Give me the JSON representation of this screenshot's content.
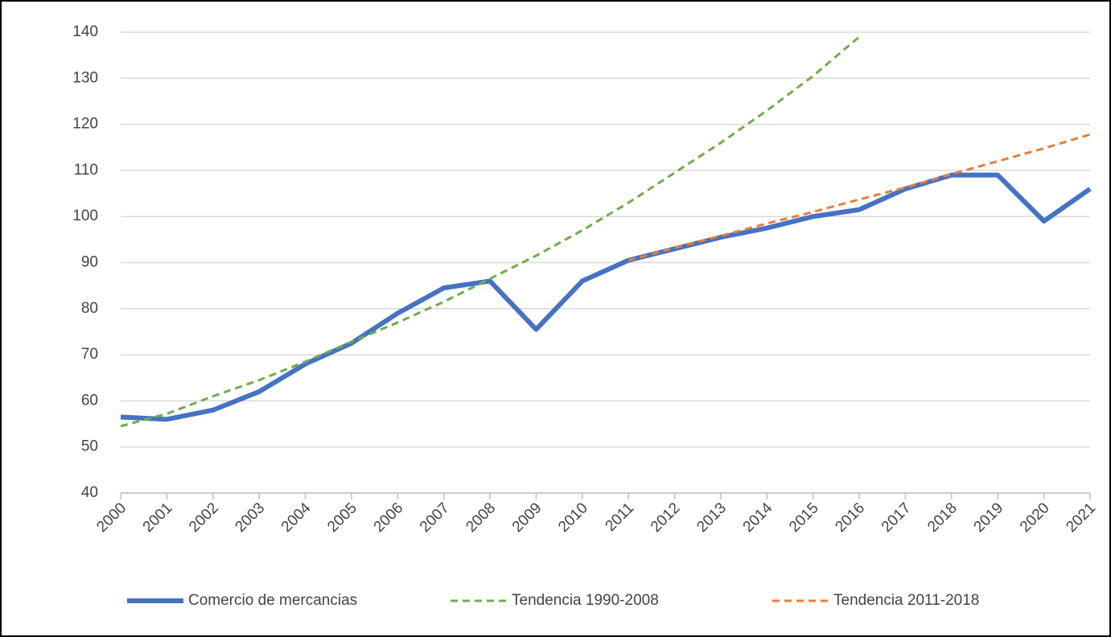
{
  "chart_data": {
    "type": "line",
    "categories": [
      "2000",
      "2001",
      "2002",
      "2003",
      "2004",
      "2005",
      "2006",
      "2007",
      "2008",
      "2009",
      "2010",
      "2011",
      "2012",
      "2013",
      "2014",
      "2015",
      "2016",
      "2017",
      "2018",
      "2019",
      "2020",
      "2021"
    ],
    "series": [
      {
        "name": "Comercio de mercancias",
        "color": "#4472c4",
        "dash": "solid",
        "values": [
          56.5,
          56,
          58,
          62,
          68,
          72.5,
          79,
          84.5,
          86,
          75.5,
          86,
          90.5,
          93,
          95.5,
          97.5,
          100,
          101.5,
          106,
          109,
          109,
          99,
          106
        ]
      },
      {
        "name": "Tendencia 1990-2008",
        "color": "#70ad47",
        "dash": "dashed",
        "values": [
          54.5,
          57.2,
          61,
          64.5,
          68.5,
          72.8,
          77,
          81.5,
          86.5,
          91.5,
          97,
          103,
          109.5,
          116,
          123,
          130.5,
          139,
          null,
          null,
          null,
          null,
          null
        ]
      },
      {
        "name": "Tendencia 2011-2018",
        "color": "#ed7d31",
        "dash": "dashed",
        "values": [
          null,
          null,
          null,
          null,
          null,
          null,
          null,
          null,
          null,
          null,
          null,
          90.5,
          93.2,
          95.8,
          98.5,
          101,
          103.7,
          106.3,
          109.2,
          112,
          114.8,
          117.8
        ]
      }
    ],
    "ylim": [
      40,
      140
    ],
    "yticks": [
      40,
      50,
      60,
      70,
      80,
      90,
      100,
      110,
      120,
      130,
      140
    ],
    "grid": true,
    "legend": "bottom"
  }
}
